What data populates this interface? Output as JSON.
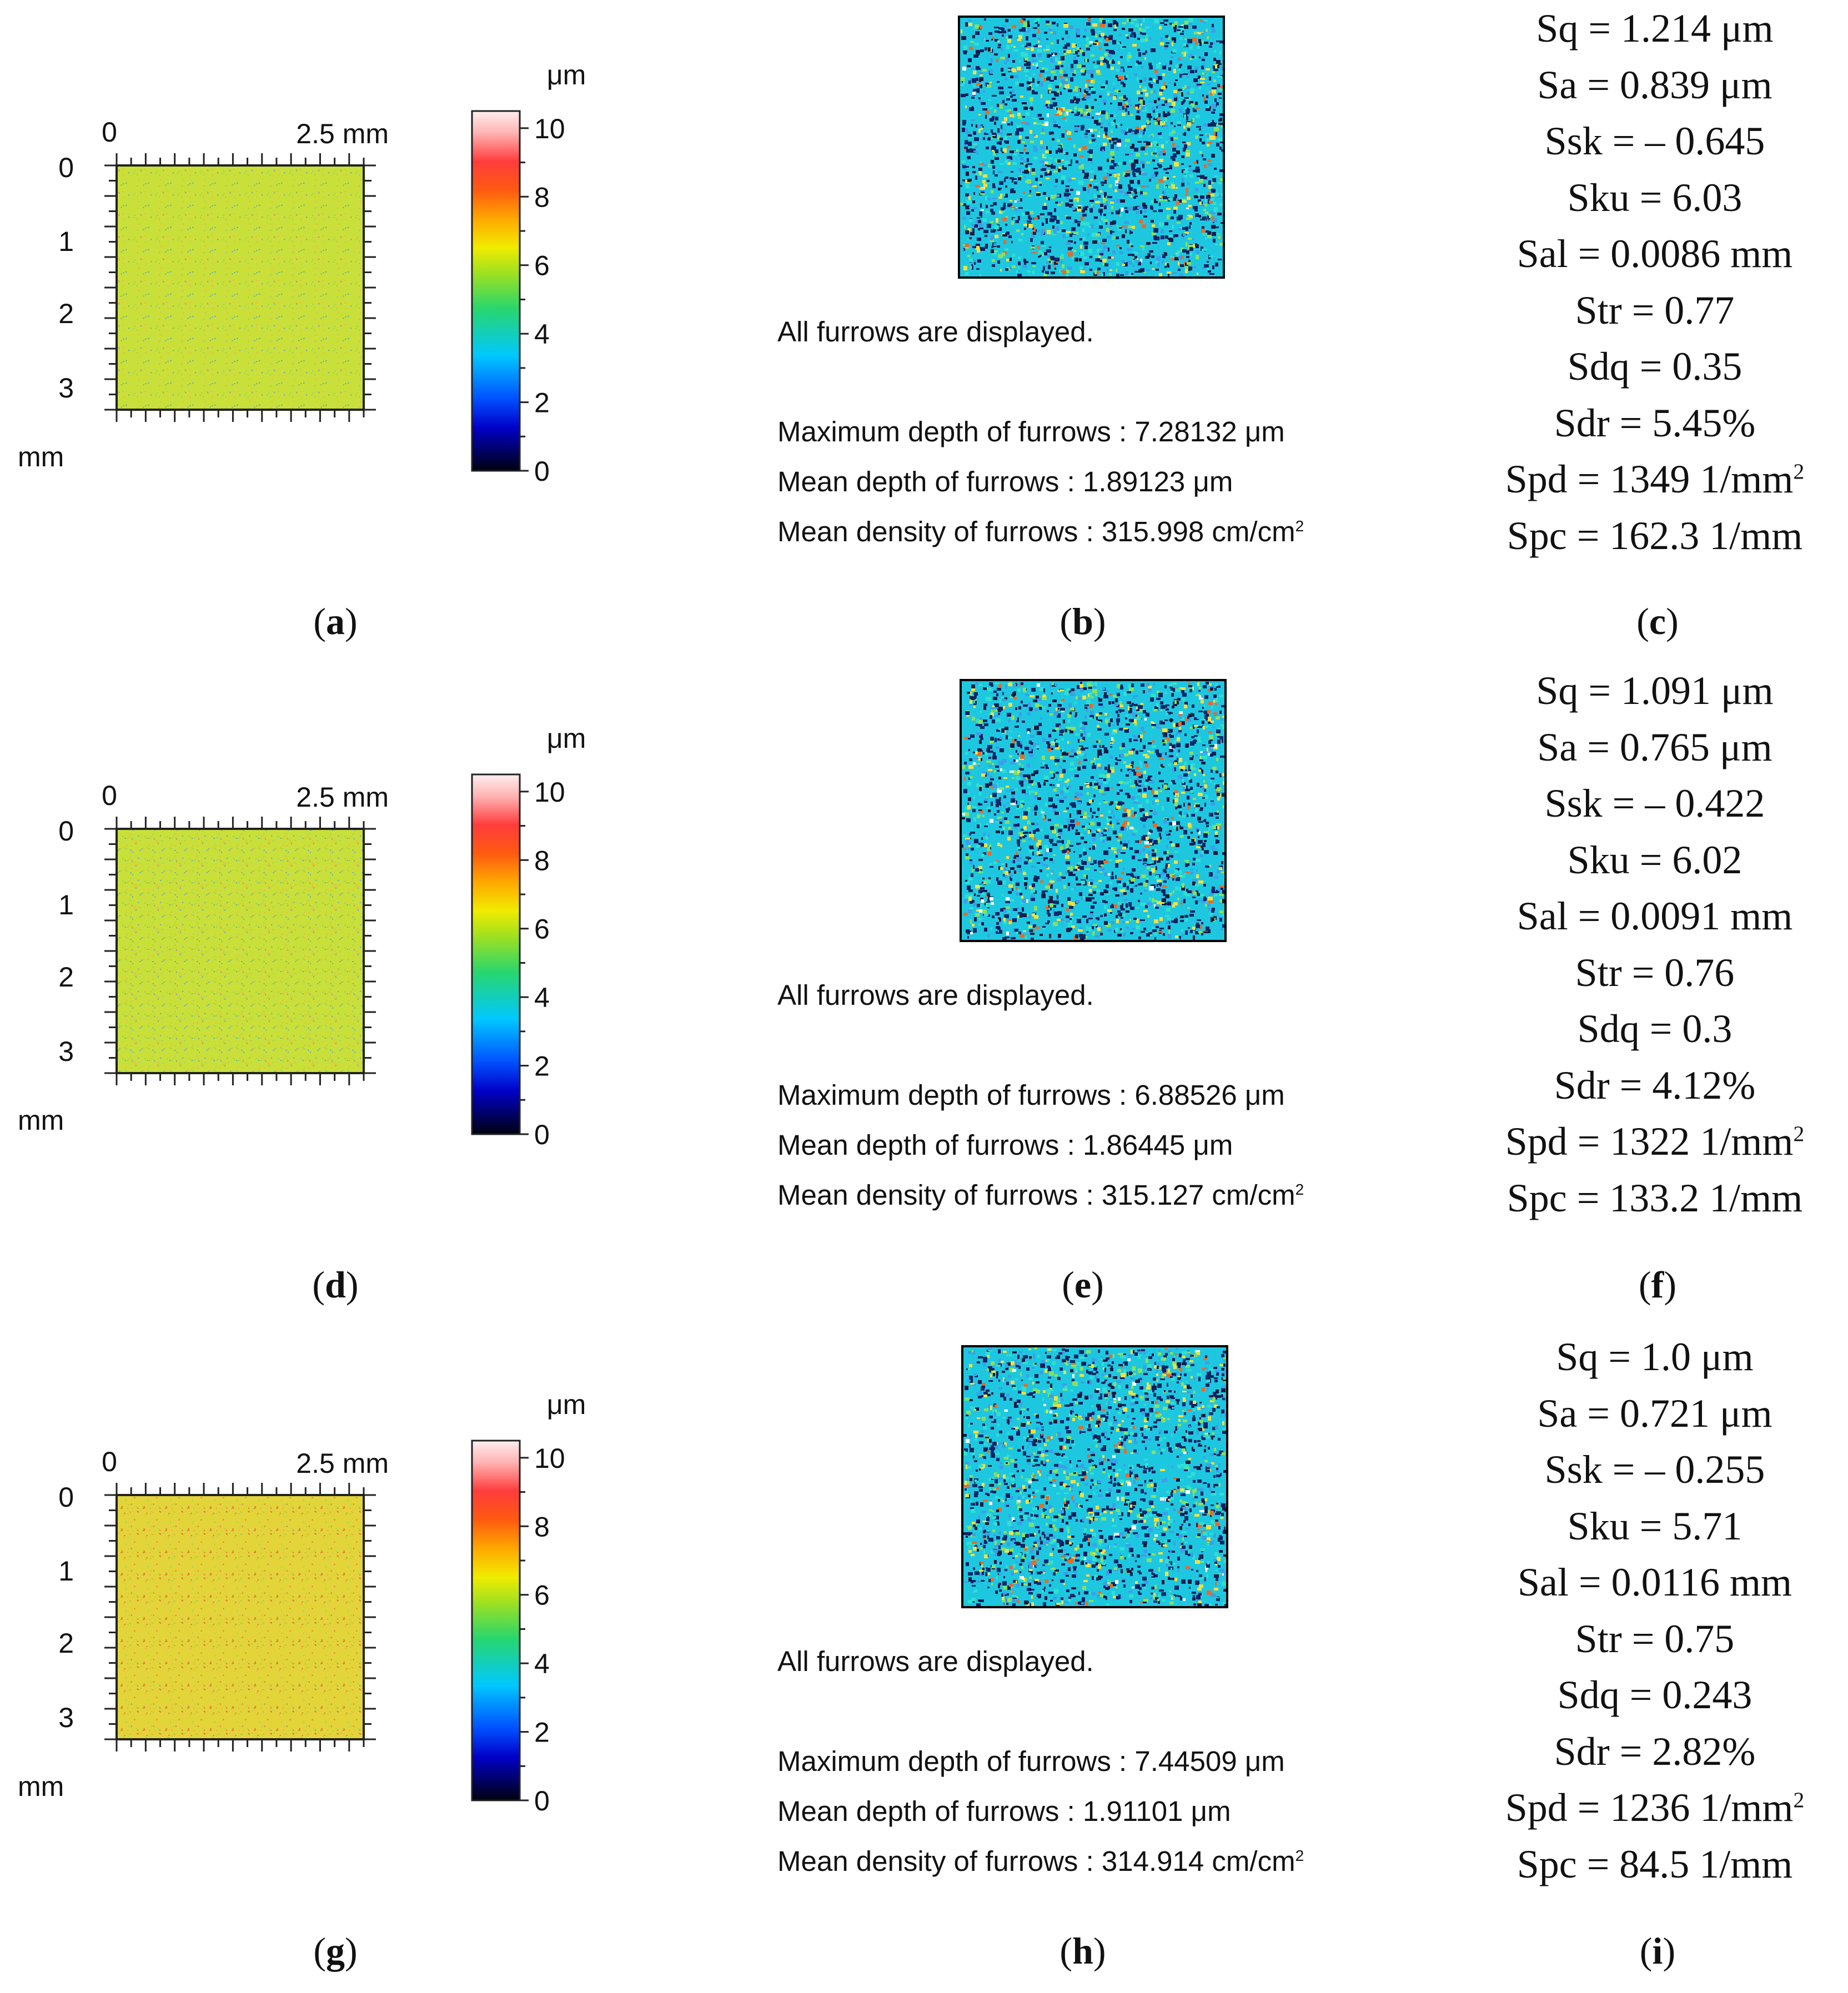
{
  "axis": {
    "x_start": "0",
    "x_end": "2.5 mm",
    "y_ticks": [
      "0",
      "1",
      "2",
      "3"
    ],
    "y_unit": "mm"
  },
  "colorbar": {
    "unit": "μm",
    "ticks": [
      "10",
      "8",
      "6",
      "4",
      "2",
      "0"
    ],
    "min": 0,
    "max": 10.5
  },
  "colors": {
    "map_yellow_green": "#c9e03a",
    "map_yellow_orange": "#e3d43a",
    "furrow_cyan": "#1ec7e0"
  },
  "rows": [
    {
      "map_label": "a",
      "furrow_label": "b",
      "param_label": "c",
      "furrow_title": "All furrows are displayed.",
      "max_depth": "Maximum depth of furrows : 7.28132 μm",
      "mean_depth": "Mean depth of furrows : 1.89123 μm",
      "mean_density": "Mean density of furrows : 315.998 cm/cm",
      "density_exp": "2",
      "params": [
        "Sq = 1.214 μm",
        "Sa = 0.839 μm",
        "Ssk = – 0.645",
        "Sku = 6.03",
        "Sal = 0.0086 mm",
        "Str = 0.77",
        "Sdq = 0.35",
        "Sdr = 5.45%"
      ],
      "spd": "Spd = 1349 1/mm",
      "spd_exp": "2",
      "spc": "Spc = 162.3 1/mm"
    },
    {
      "map_label": "d",
      "furrow_label": "e",
      "param_label": "f",
      "furrow_title": "All furrows are displayed.",
      "max_depth": "Maximum depth of furrows : 6.88526 μm",
      "mean_depth": "Mean depth of furrows : 1.86445 μm",
      "mean_density": "Mean density of furrows : 315.127 cm/cm",
      "density_exp": "2",
      "params": [
        "Sq = 1.091 μm",
        "Sa = 0.765 μm",
        "Ssk = – 0.422",
        "Sku = 6.02",
        "Sal = 0.0091 mm",
        "Str = 0.76",
        "Sdq = 0.3",
        "Sdr = 4.12%"
      ],
      "spd": "Spd = 1322 1/mm",
      "spd_exp": "2",
      "spc": "Spc = 133.2 1/mm"
    },
    {
      "map_label": "g",
      "furrow_label": "h",
      "param_label": "i",
      "furrow_title": "All furrows are displayed.",
      "max_depth": "Maximum depth of furrows : 7.44509 μm",
      "mean_depth": "Mean depth of furrows : 1.91101 μm",
      "mean_density": "Mean density of furrows : 314.914 cm/cm",
      "density_exp": "2",
      "params": [
        "Sq = 1.0 μm",
        "Sa = 0.721 μm",
        "Ssk = – 0.255",
        "Sku = 5.71",
        "Sal = 0.0116 mm",
        "Str = 0.75",
        "Sdq = 0.243",
        "Sdr = 2.82%"
      ],
      "spd": "Spd = 1236 1/mm",
      "spd_exp": "2",
      "spc": "Spc = 84.5 1/mm"
    }
  ]
}
